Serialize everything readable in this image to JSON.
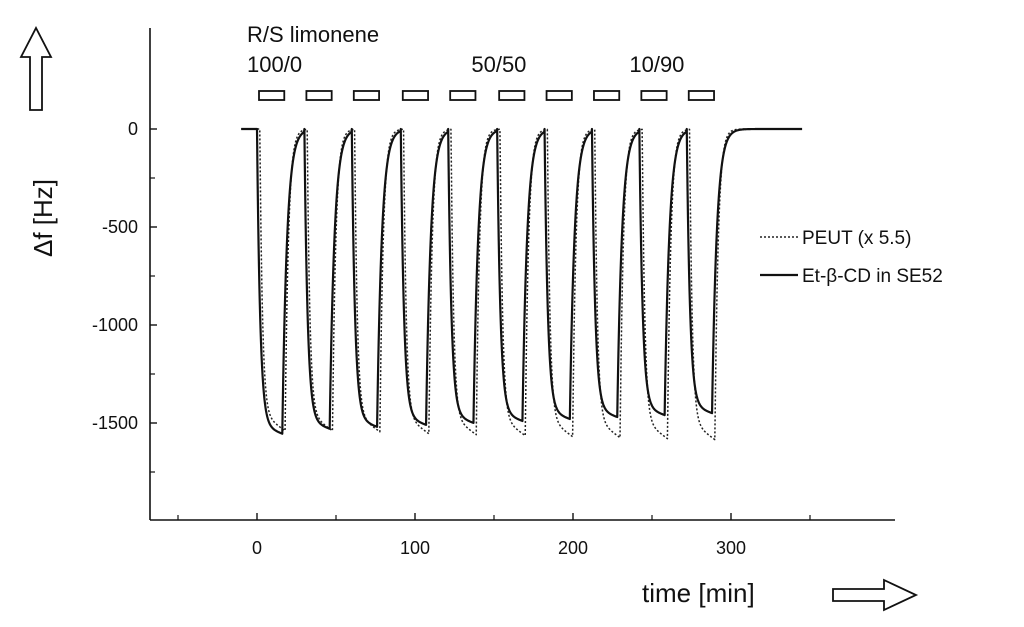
{
  "chart_data": {
    "type": "line",
    "title": "",
    "xlabel": "time [min]",
    "ylabel": "Δf  [Hz]",
    "xlim": [
      -60,
      380
    ],
    "ylim": [
      -2000,
      200
    ],
    "x_ticks": [
      0,
      100,
      200,
      300
    ],
    "x_tick_labels": [
      "0",
      "100",
      "200",
      "300"
    ],
    "y_ticks": [
      0,
      -500,
      -1000,
      -1500
    ],
    "y_tick_labels": [
      "0",
      "-500",
      "-1000",
      "-1500"
    ],
    "grid": false,
    "legend_position": "right",
    "annotations": {
      "header": "R/S limonene",
      "ratios": [
        {
          "label": "100/0",
          "x": 0
        },
        {
          "label": "50/50",
          "x": 142
        },
        {
          "label": "10/90",
          "x": 242
        }
      ]
    },
    "exposures": [
      {
        "start": 0,
        "end": 16
      },
      {
        "start": 30,
        "end": 46
      },
      {
        "start": 60,
        "end": 76
      },
      {
        "start": 91,
        "end": 107
      },
      {
        "start": 121,
        "end": 137
      },
      {
        "start": 152,
        "end": 168
      },
      {
        "start": 182,
        "end": 198
      },
      {
        "start": 212,
        "end": 228
      },
      {
        "start": 242,
        "end": 258
      },
      {
        "start": 272,
        "end": 288
      }
    ],
    "baseline_range": [
      -10,
      345
    ],
    "series": [
      {
        "name": "PEUT (x 5.5)",
        "style": "dotted",
        "color": "#222222",
        "plateaus": [
          -1540,
          -1540,
          -1545,
          -1555,
          -1560,
          -1565,
          -1570,
          -1575,
          -1580,
          -1585
        ]
      },
      {
        "name": "Et-β-CD in SE52",
        "style": "solid",
        "color": "#111111",
        "plateaus": [
          -1555,
          -1530,
          -1520,
          -1510,
          -1500,
          -1490,
          -1480,
          -1470,
          -1460,
          -1450
        ]
      }
    ]
  }
}
